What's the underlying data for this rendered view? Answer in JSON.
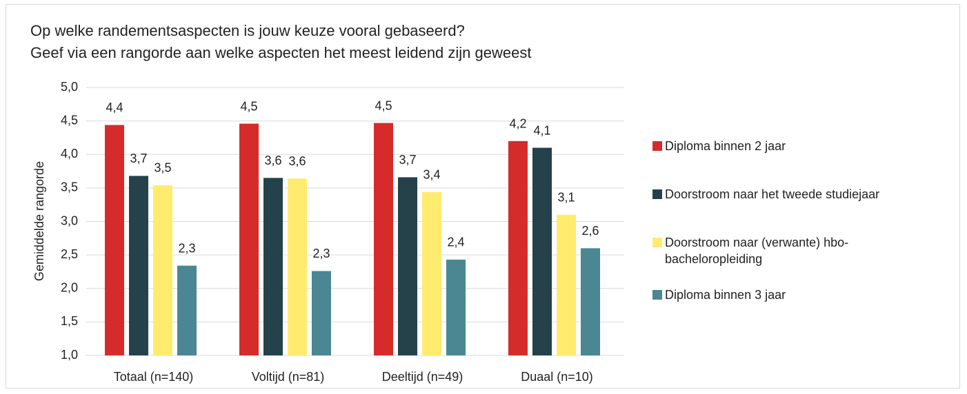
{
  "chart_data": {
    "type": "bar",
    "title": "Op welke randementsaspecten is jouw keuze vooral gebaseerd?",
    "subtitle": "Geef via een rangorde aan welke aspecten het meest leidend zijn geweest",
    "y_label": "Gemiddelde rangorde",
    "categories": [
      "Totaal (n=140)",
      "Voltijd (n=81)",
      "Deeltijd (n=49)",
      "Duaal (n=10)"
    ],
    "series": [
      {
        "name": "Diploma binnen 2 jaar",
        "color": "#d52b2b",
        "values": [
          4.44,
          4.46,
          4.47,
          4.2
        ],
        "value_labels": [
          "4,4",
          "4,5",
          "4,5",
          "4,2"
        ]
      },
      {
        "name": "Doorstroom naar het tweede studiejaar",
        "color": "#25414a",
        "values": [
          3.68,
          3.65,
          3.66,
          4.1
        ],
        "value_labels": [
          "3,7",
          "3,6",
          "3,7",
          "4,1"
        ]
      },
      {
        "name": "Doorstroom naar (verwante) hbo-bacheloropleiding",
        "color": "#ffec6e",
        "values": [
          3.54,
          3.64,
          3.44,
          3.1
        ],
        "value_labels": [
          "3,5",
          "3,6",
          "3,4",
          "3,1"
        ]
      },
      {
        "name": "Diploma binnen 3 jaar",
        "color": "#4a8793",
        "values": [
          2.34,
          2.26,
          2.43,
          2.6
        ],
        "value_labels": [
          "2,3",
          "2,3",
          "2,4",
          "2,6"
        ]
      }
    ],
    "ylim": [
      1,
      5
    ],
    "yticks": [
      {
        "value": 1,
        "label": "1,0"
      },
      {
        "value": 1.5,
        "label": "1,5"
      },
      {
        "value": 2,
        "label": "2,0"
      },
      {
        "value": 2.5,
        "label": "2,5"
      },
      {
        "value": 3,
        "label": "3,0"
      },
      {
        "value": 3.5,
        "label": "3,5"
      },
      {
        "value": 4,
        "label": "4,0"
      },
      {
        "value": 4.5,
        "label": "4,5"
      },
      {
        "value": 5,
        "label": "5,0"
      }
    ],
    "grid": true,
    "legend": "right"
  }
}
